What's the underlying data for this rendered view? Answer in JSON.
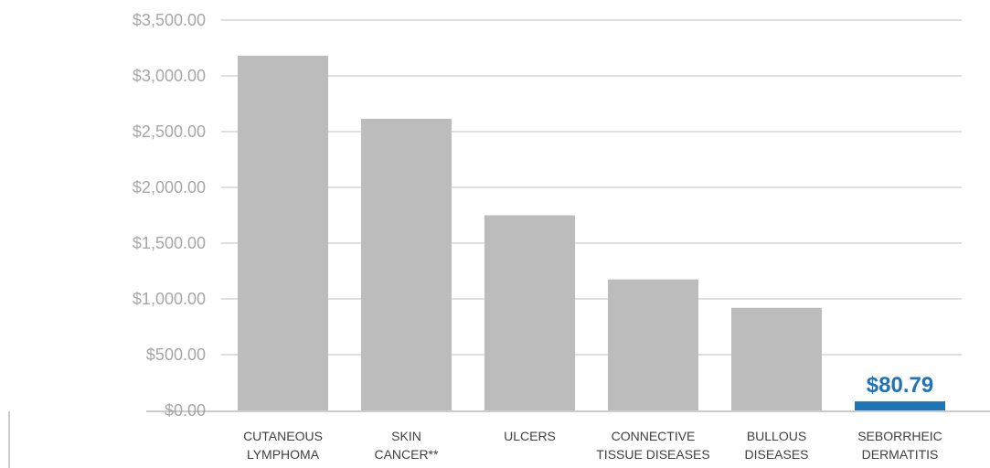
{
  "chart_data": {
    "type": "bar",
    "categories": [
      [
        "CUTANEOUS",
        "LYMPHOMA"
      ],
      [
        "SKIN",
        "CANCER**"
      ],
      [
        "ULCERS"
      ],
      [
        "CONNECTIVE",
        "TISSUE DISEASES"
      ],
      [
        "BULLOUS",
        "DISEASES"
      ],
      [
        "SEBORRHEIC",
        "DERMATITIS"
      ]
    ],
    "values": [
      3180,
      2615,
      1750,
      1175,
      920,
      80.79
    ],
    "data_labels": [
      "",
      "",
      "",
      "",
      "",
      "$80.79"
    ],
    "yticks": [
      "$0.00",
      "$500.00",
      "$1,000.00",
      "$1,500.00",
      "$2,000.00",
      "$2,500.00",
      "$3,000.00",
      "$3,500.00"
    ],
    "ylim": [
      0,
      3500
    ],
    "grid": true,
    "colors": {
      "bar": "#bdbcbc",
      "highlight": "#1f73b7",
      "grid": "#bfbfbf",
      "tick_text": "#a6a6a6",
      "category_text": "#404040"
    },
    "highlight_index": 5
  }
}
